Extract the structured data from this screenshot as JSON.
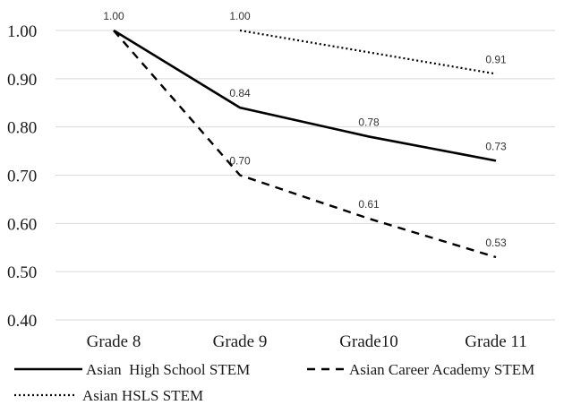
{
  "chart_data": {
    "type": "line",
    "categories": [
      "Grade 8",
      "Grade 9",
      "Grade10",
      "Grade 11"
    ],
    "ylim": [
      0.4,
      1.0
    ],
    "yticks": [
      "0.40",
      "0.50",
      "0.60",
      "0.70",
      "0.80",
      "0.90",
      "1.00"
    ],
    "grid": true,
    "legend_position": "bottom",
    "series": [
      {
        "name": "Asian  High School STEM",
        "style": "solid",
        "color": "#000000",
        "values": [
          1.0,
          0.84,
          0.78,
          0.73
        ],
        "labels": [
          "1.00",
          "0.84",
          "0.78",
          "0.73"
        ]
      },
      {
        "name": "Asian Career Academy STEM",
        "style": "dashed",
        "color": "#000000",
        "values": [
          1.0,
          0.7,
          0.61,
          0.53
        ],
        "labels": [
          "",
          "0.70",
          "0.61",
          "0.53"
        ]
      },
      {
        "name": "Asian HSLS STEM",
        "style": "dotted",
        "color": "#000000",
        "values": [
          null,
          1.0,
          null,
          0.91
        ],
        "labels": [
          "",
          "1.00",
          "",
          "0.91"
        ]
      }
    ]
  }
}
